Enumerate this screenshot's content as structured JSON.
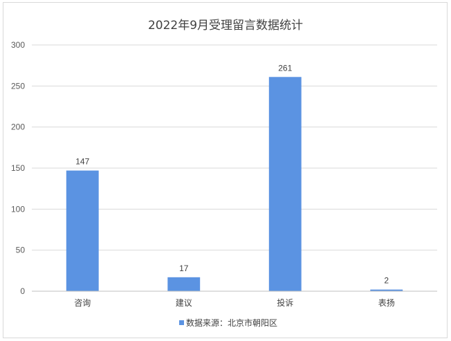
{
  "chart_data": {
    "type": "bar",
    "title": "2022年9月受理留言数据统计",
    "categories": [
      "咨询",
      "建议",
      "投诉",
      "表扬"
    ],
    "series": [
      {
        "name": "数据来源：北京市朝阳区",
        "values": [
          147,
          17,
          261,
          2
        ],
        "color": "#5b93e2"
      }
    ],
    "ylim": [
      0,
      300
    ],
    "yticks": [
      0,
      50,
      100,
      150,
      200,
      250,
      300
    ],
    "grid": true,
    "data_labels": true,
    "legend_position": "bottom"
  }
}
